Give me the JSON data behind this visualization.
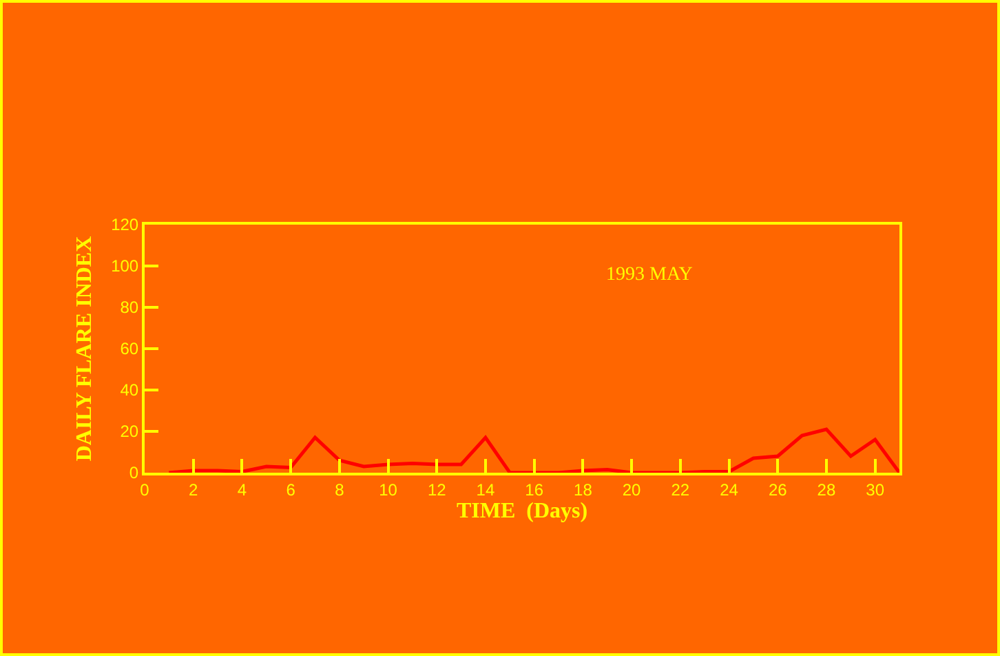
{
  "chart_data": {
    "type": "line",
    "xlabel": "TIME  (Days)",
    "ylabel": "DAILY FLARE INDEX",
    "annotations": [
      "1993 MAY"
    ],
    "x": [
      1,
      2,
      3,
      4,
      5,
      6,
      7,
      8,
      9,
      10,
      11,
      12,
      13,
      14,
      15,
      16,
      17,
      18,
      19,
      20,
      21,
      22,
      23,
      24,
      25,
      26,
      27,
      28,
      29,
      30,
      31
    ],
    "series": [
      {
        "color": "#ff0000",
        "values": [
          0,
          1,
          1,
          0.5,
          3,
          2.5,
          17,
          6,
          3,
          4,
          4.5,
          4,
          4,
          17,
          0,
          0,
          0,
          1,
          1.5,
          0,
          0,
          0,
          0.5,
          0.5,
          7,
          8,
          18,
          21,
          8,
          16,
          0
        ]
      }
    ],
    "xlim": [
      0,
      31
    ],
    "xticks": [
      0,
      2,
      4,
      6,
      8,
      10,
      12,
      14,
      16,
      18,
      20,
      22,
      24,
      26,
      28,
      30
    ],
    "ylim": [
      0,
      120
    ],
    "yticks": [
      0,
      20,
      40,
      60,
      80,
      100,
      120
    ],
    "grid": false,
    "legend": false,
    "marker": "none",
    "line_style": "solid"
  }
}
